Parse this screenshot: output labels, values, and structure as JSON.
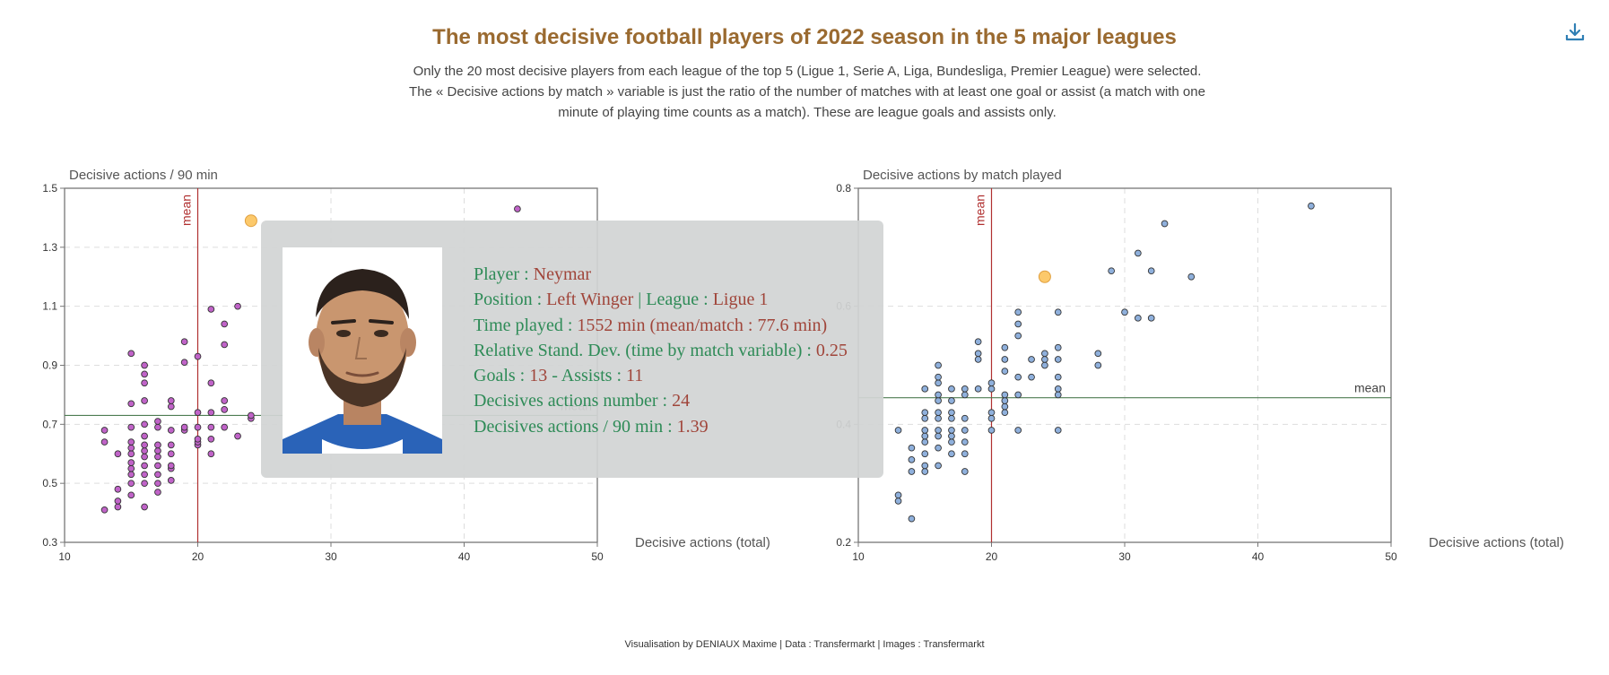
{
  "header": {
    "title": "The most decisive football players of 2022 season in the 5 major leagues",
    "subtitle_lines": [
      "Only the 20 most decisive players from each league of the top 5 (Ligue 1, Serie A, Liga, Bundesliga, Premier League) were selected.",
      "The « Decisive actions by match » variable is just the ratio of the number of matches with at least one goal or assist (a match with one",
      "minute of playing time counts as a match). These are league goals and assists only."
    ],
    "title_color": "#9a6a30"
  },
  "toolbar": {
    "download_icon": "download-icon"
  },
  "footer": {
    "credits": "Visualisation by DENIAUX Maxime | Data : Transfermarkt | Images : Transfermarkt"
  },
  "tooltip": {
    "photo_icon": "player-photo",
    "lines": [
      {
        "label": "Player : ",
        "value": "Neymar"
      },
      {
        "label": "Position : ",
        "value": "Left Winger",
        "label2": " | League : ",
        "value2": "Ligue 1"
      },
      {
        "label": "Time played : ",
        "value": "1552 min (mean/match : 77.6 min)"
      },
      {
        "label": "Relative Stand. Dev. (time by match variable) : ",
        "value": "0.25"
      },
      {
        "label": "Goals : ",
        "value": "13",
        "label2": " - Assists : ",
        "value2": "11"
      },
      {
        "label": "Decisives actions number : ",
        "value": "24"
      },
      {
        "label": "Decisives actions / 90 min : ",
        "value": "1.39"
      }
    ]
  },
  "chart_data": [
    {
      "type": "scatter",
      "title": "",
      "ylabel": "Decisive actions / 90 min",
      "xlabel": "Decisive actions (total)",
      "xlim": [
        10,
        50
      ],
      "ylim": [
        0.3,
        1.5
      ],
      "xticks": [
        "10",
        "20",
        "30",
        "40",
        "50"
      ],
      "yticks": [
        "0.3",
        "0.5",
        "0.7",
        "0.9",
        "1.1",
        "1.3",
        "1.5"
      ],
      "grid": true,
      "mean_x": 20,
      "mean_y": 0.73,
      "mean_label": "mean",
      "point_color": "#c063c8",
      "highlight_color": "#fcc96b",
      "highlight": [
        24,
        1.39
      ],
      "points": [
        [
          13,
          0.41
        ],
        [
          13,
          0.64
        ],
        [
          13,
          0.68
        ],
        [
          14,
          0.42
        ],
        [
          14,
          0.44
        ],
        [
          14,
          0.48
        ],
        [
          14,
          0.6
        ],
        [
          15,
          0.46
        ],
        [
          15,
          0.5
        ],
        [
          15,
          0.53
        ],
        [
          15,
          0.55
        ],
        [
          15,
          0.57
        ],
        [
          15,
          0.6
        ],
        [
          15,
          0.62
        ],
        [
          15,
          0.64
        ],
        [
          15,
          0.69
        ],
        [
          15,
          0.77
        ],
        [
          15,
          0.94
        ],
        [
          16,
          0.42
        ],
        [
          16,
          0.5
        ],
        [
          16,
          0.53
        ],
        [
          16,
          0.56
        ],
        [
          16,
          0.59
        ],
        [
          16,
          0.61
        ],
        [
          16,
          0.63
        ],
        [
          16,
          0.66
        ],
        [
          16,
          0.7
        ],
        [
          16,
          0.78
        ],
        [
          16,
          0.84
        ],
        [
          16,
          0.87
        ],
        [
          16,
          0.9
        ],
        [
          17,
          0.47
        ],
        [
          17,
          0.5
        ],
        [
          17,
          0.53
        ],
        [
          17,
          0.56
        ],
        [
          17,
          0.59
        ],
        [
          17,
          0.61
        ],
        [
          17,
          0.63
        ],
        [
          17,
          0.69
        ],
        [
          17,
          0.71
        ],
        [
          18,
          0.51
        ],
        [
          18,
          0.55
        ],
        [
          18,
          0.56
        ],
        [
          18,
          0.6
        ],
        [
          18,
          0.63
        ],
        [
          18,
          0.68
        ],
        [
          18,
          0.76
        ],
        [
          18,
          0.78
        ],
        [
          19,
          0.68
        ],
        [
          19,
          0.69
        ],
        [
          19,
          0.91
        ],
        [
          19,
          0.98
        ],
        [
          20,
          0.63
        ],
        [
          20,
          0.64
        ],
        [
          20,
          0.65
        ],
        [
          20,
          0.69
        ],
        [
          20,
          0.74
        ],
        [
          20,
          0.93
        ],
        [
          21,
          0.6
        ],
        [
          21,
          0.65
        ],
        [
          21,
          0.69
        ],
        [
          21,
          0.74
        ],
        [
          21,
          0.84
        ],
        [
          21,
          1.09
        ],
        [
          22,
          0.69
        ],
        [
          22,
          0.75
        ],
        [
          22,
          0.78
        ],
        [
          22,
          0.97
        ],
        [
          22,
          1.04
        ],
        [
          23,
          0.66
        ],
        [
          23,
          1.1
        ],
        [
          24,
          0.72
        ],
        [
          24,
          0.73
        ],
        [
          44,
          1.43
        ]
      ]
    },
    {
      "type": "scatter",
      "title": "",
      "ylabel": "Decisive actions by match played",
      "xlabel": "Decisive actions (total)",
      "xlim": [
        10,
        50
      ],
      "ylim": [
        0.2,
        0.8
      ],
      "xticks": [
        "10",
        "20",
        "30",
        "40",
        "50"
      ],
      "yticks": [
        "0.2",
        "0.4",
        "0.6",
        "0.8"
      ],
      "grid": true,
      "mean_x": 20,
      "mean_y": 0.445,
      "mean_label": "mean",
      "point_color": "#8fb0dc",
      "highlight_color": "#fcc96b",
      "highlight": [
        24,
        0.65
      ],
      "points": [
        [
          13,
          0.27
        ],
        [
          13,
          0.28
        ],
        [
          13,
          0.39
        ],
        [
          14,
          0.24
        ],
        [
          14,
          0.32
        ],
        [
          14,
          0.34
        ],
        [
          14,
          0.36
        ],
        [
          15,
          0.32
        ],
        [
          15,
          0.33
        ],
        [
          15,
          0.35
        ],
        [
          15,
          0.37
        ],
        [
          15,
          0.38
        ],
        [
          15,
          0.39
        ],
        [
          15,
          0.41
        ],
        [
          15,
          0.42
        ],
        [
          15,
          0.46
        ],
        [
          16,
          0.33
        ],
        [
          16,
          0.36
        ],
        [
          16,
          0.38
        ],
        [
          16,
          0.39
        ],
        [
          16,
          0.41
        ],
        [
          16,
          0.42
        ],
        [
          16,
          0.44
        ],
        [
          16,
          0.45
        ],
        [
          16,
          0.47
        ],
        [
          16,
          0.48
        ],
        [
          16,
          0.5
        ],
        [
          17,
          0.35
        ],
        [
          17,
          0.37
        ],
        [
          17,
          0.38
        ],
        [
          17,
          0.39
        ],
        [
          17,
          0.41
        ],
        [
          17,
          0.42
        ],
        [
          17,
          0.44
        ],
        [
          17,
          0.46
        ],
        [
          18,
          0.32
        ],
        [
          18,
          0.35
        ],
        [
          18,
          0.37
        ],
        [
          18,
          0.39
        ],
        [
          18,
          0.41
        ],
        [
          18,
          0.45
        ],
        [
          18,
          0.46
        ],
        [
          19,
          0.46
        ],
        [
          19,
          0.51
        ],
        [
          19,
          0.52
        ],
        [
          19,
          0.54
        ],
        [
          20,
          0.39
        ],
        [
          20,
          0.41
        ],
        [
          20,
          0.42
        ],
        [
          20,
          0.46
        ],
        [
          20,
          0.47
        ],
        [
          21,
          0.42
        ],
        [
          21,
          0.43
        ],
        [
          21,
          0.44
        ],
        [
          21,
          0.45
        ],
        [
          21,
          0.49
        ],
        [
          21,
          0.51
        ],
        [
          21,
          0.53
        ],
        [
          22,
          0.39
        ],
        [
          22,
          0.45
        ],
        [
          22,
          0.48
        ],
        [
          22,
          0.55
        ],
        [
          22,
          0.57
        ],
        [
          22,
          0.59
        ],
        [
          23,
          0.48
        ],
        [
          23,
          0.51
        ],
        [
          24,
          0.5
        ],
        [
          24,
          0.51
        ],
        [
          24,
          0.52
        ],
        [
          25,
          0.39
        ],
        [
          25,
          0.45
        ],
        [
          25,
          0.46
        ],
        [
          25,
          0.48
        ],
        [
          25,
          0.51
        ],
        [
          25,
          0.53
        ],
        [
          25,
          0.59
        ],
        [
          28,
          0.5
        ],
        [
          28,
          0.52
        ],
        [
          29,
          0.66
        ],
        [
          30,
          0.59
        ],
        [
          31,
          0.58
        ],
        [
          31,
          0.69
        ],
        [
          32,
          0.58
        ],
        [
          32,
          0.66
        ],
        [
          33,
          0.74
        ],
        [
          35,
          0.65
        ],
        [
          44,
          0.77
        ]
      ]
    }
  ]
}
